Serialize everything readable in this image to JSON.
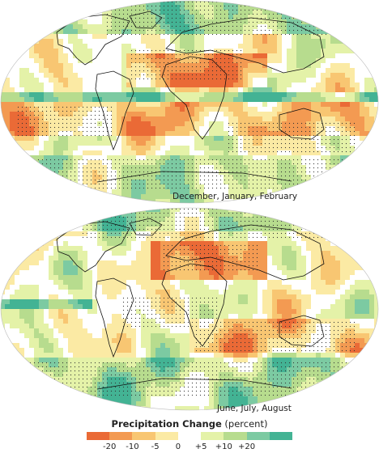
{
  "maps": [
    {
      "id": "djf",
      "label": "December, January, February"
    },
    {
      "id": "jja",
      "label": "June, July, August"
    }
  ],
  "legend": {
    "title": "Precipitation Change",
    "unit": "(percent)",
    "ticks": [
      "-20",
      "-10",
      "-5",
      "0",
      "+5",
      "+10",
      "+20"
    ],
    "colors": [
      "#ea6a36",
      "#f39a52",
      "#f8c672",
      "#fbeaa4",
      "#ffffff",
      "#e4f2a8",
      "#b7dc8e",
      "#7ccaa2",
      "#43b394"
    ]
  }
}
